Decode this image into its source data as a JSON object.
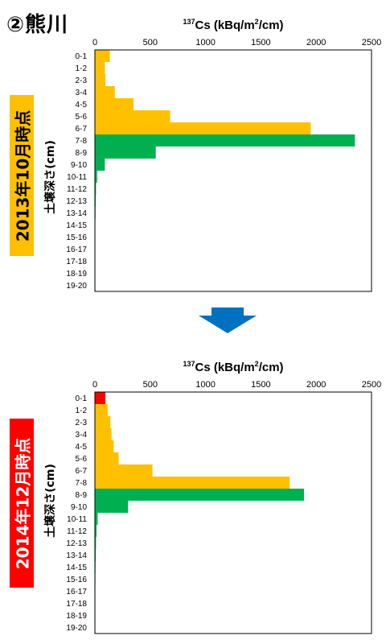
{
  "page_title": "②熊川",
  "periods": [
    {
      "label": "2013年10月時点",
      "color": "#FFC000",
      "text_color": "#000000"
    },
    {
      "label": "2014年12月時点",
      "color": "#FF0000",
      "text_color": "#FFFFFF"
    }
  ],
  "ylabel": "土壌深さ(cm)",
  "colors": {
    "orange": "#FFC000",
    "green": "#00B050",
    "red": "#FF0000",
    "arrow": "#0070C0"
  },
  "chart_data": [
    {
      "type": "bar",
      "orientation": "horizontal",
      "title": "137Cs (kBq/m2/cm)",
      "xlabel_parts": {
        "sup1": "137",
        "mid": "Cs (kBq/m",
        "sup2": "2",
        "end": "/cm)"
      },
      "ylabel": "土壌深さ(cm)",
      "xlim": [
        0,
        2500
      ],
      "xticks": [
        0,
        500,
        1000,
        1500,
        2000,
        2500
      ],
      "categories": [
        "0-1",
        "1-2",
        "2-3",
        "3-4",
        "4-5",
        "5-6",
        "6-7",
        "7-8",
        "8-9",
        "9-10",
        "10-11",
        "11-12",
        "12-13",
        "13-14",
        "14-15",
        "15-16",
        "16-17",
        "17-18",
        "18-19",
        "19-20"
      ],
      "values": [
        135,
        90,
        95,
        180,
        350,
        680,
        1950,
        2350,
        550,
        90,
        20,
        10,
        8,
        6,
        4,
        3,
        3,
        2,
        2,
        2
      ],
      "bar_colors": [
        "orange",
        "orange",
        "orange",
        "orange",
        "orange",
        "orange",
        "orange",
        "green",
        "green",
        "green",
        "green",
        "green",
        "green",
        "green",
        "green",
        "green",
        "green",
        "green",
        "green",
        "green"
      ],
      "grid": false
    },
    {
      "type": "bar",
      "orientation": "horizontal",
      "title": "137Cs (kBq/m2/cm)",
      "xlabel_parts": {
        "sup1": "137",
        "mid": "Cs (kBq/m",
        "sup2": "2",
        "end": "/cm)"
      },
      "ylabel": "土壌深さ(cm)",
      "xlim": [
        0,
        2500
      ],
      "xticks": [
        0,
        500,
        1000,
        1500,
        2000,
        2500
      ],
      "categories": [
        "0-1",
        "1-2",
        "2-3",
        "3-4",
        "4-5",
        "5-6",
        "6-7",
        "7-8",
        "8-9",
        "9-10",
        "10-11",
        "11-12",
        "12-13",
        "13-14",
        "14-15",
        "15-16",
        "16-17",
        "17-18",
        "18-19",
        "19-20"
      ],
      "values": [
        95,
        115,
        140,
        150,
        170,
        215,
        520,
        1760,
        1890,
        300,
        25,
        15,
        10,
        8,
        6,
        5,
        4,
        3,
        3,
        2
      ],
      "bar_colors": [
        "red",
        "orange",
        "orange",
        "orange",
        "orange",
        "orange",
        "orange",
        "orange",
        "green",
        "green",
        "green",
        "green",
        "green",
        "green",
        "green",
        "green",
        "green",
        "green",
        "green",
        "green"
      ],
      "grid": false
    }
  ]
}
